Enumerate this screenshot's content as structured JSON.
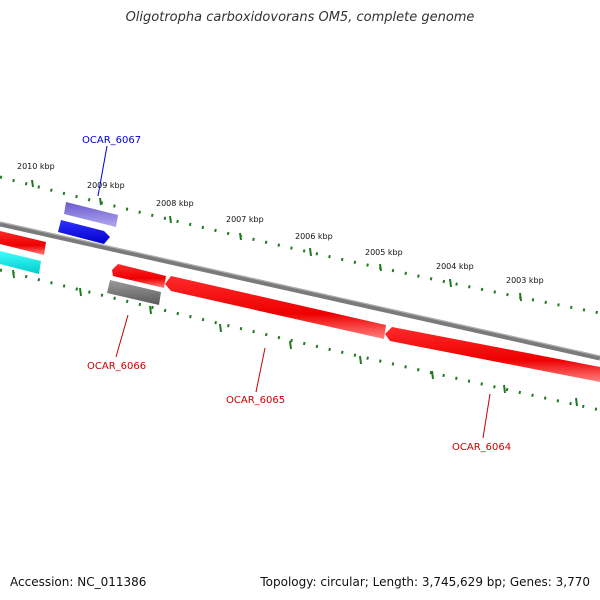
{
  "title": "Oligotropha carboxidovorans OM5, complete genome",
  "accession": "Accession: NC_011386",
  "summary": "Topology: circular; Length: 3,745,629 bp; Genes: 3,770",
  "colors": {
    "backbone": "#808080",
    "tick": "#1f7a1f",
    "forward_cds": "#ff0000",
    "reverse_cds": "#ff0000",
    "label_red": "#cc0000",
    "label_blue": "#0000cc",
    "blue_feature": "#0000ff",
    "purple_feature": "#7b68ee",
    "cyan_feature": "#00ffff",
    "gray_feature": "#666666"
  },
  "ticks": [
    "2010 kbp",
    "2009 kbp",
    "2008 kbp",
    "2007 kbp",
    "2006 kbp",
    "2005 kbp",
    "2004 kbp",
    "2003 kbp"
  ],
  "genes": [
    {
      "id": "ocar-6067",
      "label": "OCAR_6067",
      "color": "label_blue"
    },
    {
      "id": "ocar-6066",
      "label": "OCAR_6066",
      "color": "label_red"
    },
    {
      "id": "ocar-6065",
      "label": "OCAR_6065",
      "color": "label_red"
    },
    {
      "id": "ocar-6064",
      "label": "OCAR_6064",
      "color": "label_red"
    }
  ]
}
